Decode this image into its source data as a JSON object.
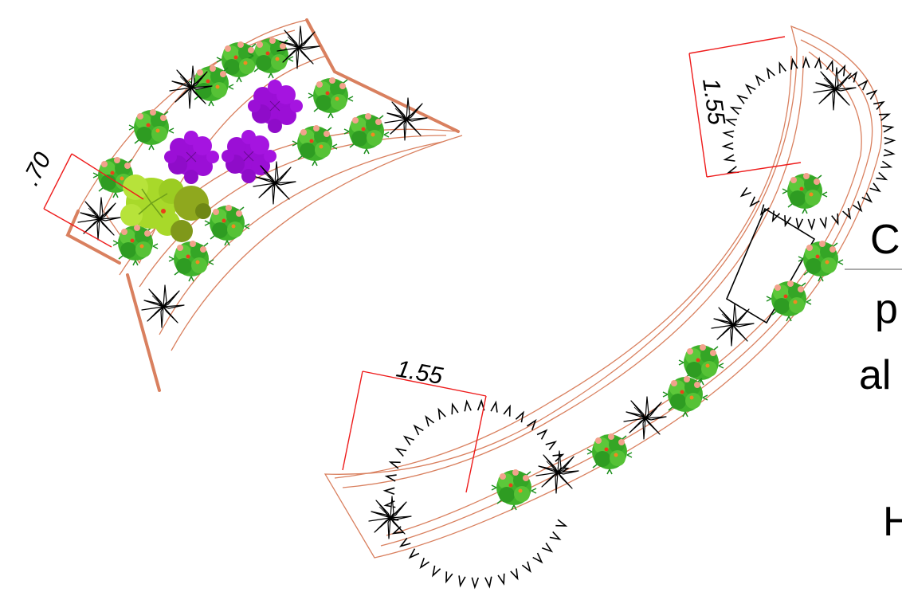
{
  "drawing": {
    "dimensions": {
      "bed_left_width": ".70",
      "bed_right_top_radius": "1.55",
      "bed_right_bottom_radius": "1.55"
    },
    "cut_text": {
      "line1": "C",
      "line2": "p",
      "line3": "al",
      "line4": "H"
    },
    "colors": {
      "bed_outline": "#d9805f",
      "dimension_line": "#ee1b1b",
      "shrub_green": "#3fb22b",
      "shrub_dark_green": "#1e8f1e",
      "flower_pink": "#f2a28c",
      "purple_shrub": "#9b0fd6",
      "lime_tree": "#a8d92a",
      "olive_tree": "#8fa81e",
      "spiky_plant": "#000000"
    },
    "plant_symbols": [
      "green-flowering-shrub",
      "purple-shrub",
      "lime-tree",
      "spiky-grass",
      "agave-succulent"
    ]
  }
}
